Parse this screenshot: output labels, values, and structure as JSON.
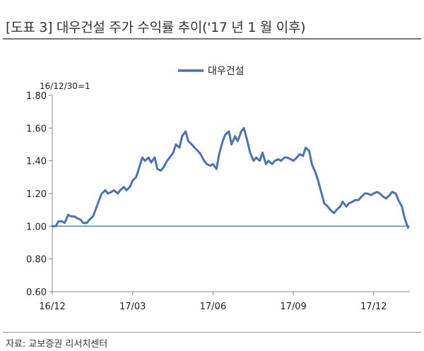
{
  "header": {
    "title": "[도표 3] 대우건설 주가 수익률 추이('17 년 1 월 이후)"
  },
  "footer": {
    "source": "자료: 교보증권 리서치센터"
  },
  "chart_data": {
    "type": "line",
    "title": "[도표 3] 대우건설 주가 수익률 추이('17 년 1 월 이후)",
    "base_note": "16/12/30=1",
    "ylim": [
      0.6,
      1.8
    ],
    "y_ticks": [
      0.6,
      0.8,
      1.0,
      1.2,
      1.4,
      1.6,
      1.8
    ],
    "y_tick_labels": [
      "0.60",
      "0.80",
      "1.00",
      "1.20",
      "1.40",
      "1.60",
      "1.80"
    ],
    "x_tick_labels": [
      "16/12",
      "17/03",
      "17/06",
      "17/09",
      "17/12"
    ],
    "x_tick_dates": [
      "2016-12-30",
      "2017-03-31",
      "2017-06-30",
      "2017-09-29",
      "2017-12-29"
    ],
    "xlim": [
      "2016-12-30",
      "2018-02-08"
    ],
    "legend": {
      "position": "top-center"
    },
    "grid": false,
    "reference_line": {
      "y": 1.0,
      "color": "#5b8bc9"
    },
    "series": [
      {
        "name": "대우건설",
        "color": "#4a74b6",
        "points": [
          [
            "2016-12-30",
            1.0
          ],
          [
            "2017-01-03",
            1.0
          ],
          [
            "2017-01-06",
            1.03
          ],
          [
            "2017-01-10",
            1.03
          ],
          [
            "2017-01-13",
            1.02
          ],
          [
            "2017-01-17",
            1.07
          ],
          [
            "2017-01-20",
            1.06
          ],
          [
            "2017-01-24",
            1.06
          ],
          [
            "2017-01-27",
            1.05
          ],
          [
            "2017-01-31",
            1.04
          ],
          [
            "2017-02-03",
            1.02
          ],
          [
            "2017-02-07",
            1.02
          ],
          [
            "2017-02-10",
            1.04
          ],
          [
            "2017-02-14",
            1.06
          ],
          [
            "2017-02-17",
            1.1
          ],
          [
            "2017-02-21",
            1.16
          ],
          [
            "2017-02-24",
            1.2
          ],
          [
            "2017-02-28",
            1.22
          ],
          [
            "2017-03-03",
            1.2
          ],
          [
            "2017-03-07",
            1.21
          ],
          [
            "2017-03-10",
            1.22
          ],
          [
            "2017-03-14",
            1.2
          ],
          [
            "2017-03-17",
            1.22
          ],
          [
            "2017-03-21",
            1.24
          ],
          [
            "2017-03-24",
            1.22
          ],
          [
            "2017-03-28",
            1.24
          ],
          [
            "2017-03-31",
            1.28
          ],
          [
            "2017-04-04",
            1.3
          ],
          [
            "2017-04-07",
            1.35
          ],
          [
            "2017-04-11",
            1.42
          ],
          [
            "2017-04-14",
            1.4
          ],
          [
            "2017-04-18",
            1.42
          ],
          [
            "2017-04-21",
            1.39
          ],
          [
            "2017-04-25",
            1.42
          ],
          [
            "2017-04-28",
            1.35
          ],
          [
            "2017-05-02",
            1.34
          ],
          [
            "2017-05-05",
            1.36
          ],
          [
            "2017-05-09",
            1.4
          ],
          [
            "2017-05-12",
            1.42
          ],
          [
            "2017-05-16",
            1.45
          ],
          [
            "2017-05-19",
            1.5
          ],
          [
            "2017-05-23",
            1.48
          ],
          [
            "2017-05-26",
            1.55
          ],
          [
            "2017-05-30",
            1.58
          ],
          [
            "2017-06-02",
            1.52
          ],
          [
            "2017-06-06",
            1.5
          ],
          [
            "2017-06-09",
            1.48
          ],
          [
            "2017-06-13",
            1.46
          ],
          [
            "2017-06-16",
            1.44
          ],
          [
            "2017-06-20",
            1.4
          ],
          [
            "2017-06-23",
            1.38
          ],
          [
            "2017-06-27",
            1.37
          ],
          [
            "2017-06-30",
            1.38
          ],
          [
            "2017-07-04",
            1.35
          ],
          [
            "2017-07-07",
            1.44
          ],
          [
            "2017-07-11",
            1.52
          ],
          [
            "2017-07-14",
            1.56
          ],
          [
            "2017-07-18",
            1.58
          ],
          [
            "2017-07-21",
            1.5
          ],
          [
            "2017-07-25",
            1.55
          ],
          [
            "2017-07-28",
            1.52
          ],
          [
            "2017-08-01",
            1.58
          ],
          [
            "2017-08-04",
            1.6
          ],
          [
            "2017-08-08",
            1.52
          ],
          [
            "2017-08-11",
            1.45
          ],
          [
            "2017-08-15",
            1.4
          ],
          [
            "2017-08-18",
            1.42
          ],
          [
            "2017-08-22",
            1.4
          ],
          [
            "2017-08-25",
            1.45
          ],
          [
            "2017-08-29",
            1.38
          ],
          [
            "2017-09-01",
            1.4
          ],
          [
            "2017-09-05",
            1.38
          ],
          [
            "2017-09-08",
            1.4
          ],
          [
            "2017-09-12",
            1.41
          ],
          [
            "2017-09-15",
            1.4
          ],
          [
            "2017-09-19",
            1.42
          ],
          [
            "2017-09-22",
            1.42
          ],
          [
            "2017-09-26",
            1.41
          ],
          [
            "2017-09-29",
            1.4
          ],
          [
            "2017-10-03",
            1.42
          ],
          [
            "2017-10-06",
            1.44
          ],
          [
            "2017-10-10",
            1.43
          ],
          [
            "2017-10-13",
            1.48
          ],
          [
            "2017-10-17",
            1.46
          ],
          [
            "2017-10-20",
            1.38
          ],
          [
            "2017-10-24",
            1.33
          ],
          [
            "2017-10-27",
            1.28
          ],
          [
            "2017-10-31",
            1.2
          ],
          [
            "2017-11-03",
            1.14
          ],
          [
            "2017-11-07",
            1.12
          ],
          [
            "2017-11-10",
            1.1
          ],
          [
            "2017-11-14",
            1.08
          ],
          [
            "2017-11-17",
            1.1
          ],
          [
            "2017-11-21",
            1.12
          ],
          [
            "2017-11-24",
            1.15
          ],
          [
            "2017-11-28",
            1.12
          ],
          [
            "2017-12-01",
            1.14
          ],
          [
            "2017-12-05",
            1.15
          ],
          [
            "2017-12-08",
            1.16
          ],
          [
            "2017-12-12",
            1.16
          ],
          [
            "2017-12-15",
            1.18
          ],
          [
            "2017-12-19",
            1.2
          ],
          [
            "2017-12-22",
            1.2
          ],
          [
            "2017-12-26",
            1.19
          ],
          [
            "2017-12-29",
            1.2
          ],
          [
            "2018-01-02",
            1.21
          ],
          [
            "2018-01-05",
            1.2
          ],
          [
            "2018-01-09",
            1.18
          ],
          [
            "2018-01-12",
            1.17
          ],
          [
            "2018-01-16",
            1.19
          ],
          [
            "2018-01-19",
            1.21
          ],
          [
            "2018-01-23",
            1.2
          ],
          [
            "2018-01-26",
            1.16
          ],
          [
            "2018-01-30",
            1.12
          ],
          [
            "2018-02-02",
            1.05
          ],
          [
            "2018-02-06",
            0.99
          ]
        ]
      }
    ]
  }
}
